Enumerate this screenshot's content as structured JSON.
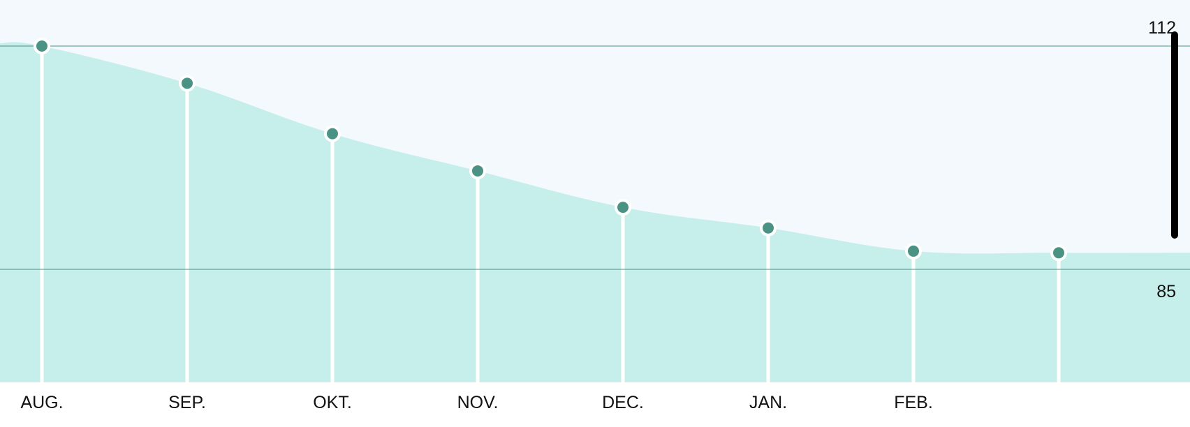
{
  "colors": {
    "plot_background": "#f3f9fc",
    "area_fill": "#c6eeea",
    "line_color": "#4a9384",
    "point_color": "#4a9384",
    "point_outline": "#ffffff",
    "dropline_color": "#ffffff",
    "axis_text": "#111111",
    "scrollbar": "#000000"
  },
  "chart_data": {
    "type": "area",
    "title": "",
    "xlabel": "",
    "ylabel": "",
    "categories": [
      "AUG.",
      "SEP.",
      "OKT.",
      "NOV.",
      "DEC.",
      "JAN.",
      "FEB.",
      ""
    ],
    "series": [
      {
        "values": [
          112,
          107.5,
          101.4,
          96.9,
          92.5,
          90.0,
          87.2,
          87.0
        ]
      }
    ],
    "y_axis_labels": [
      "112",
      "85"
    ],
    "reference_lines": [
      112,
      85
    ],
    "ylim": [
      72,
      117
    ],
    "grid": false,
    "legend": "none"
  }
}
